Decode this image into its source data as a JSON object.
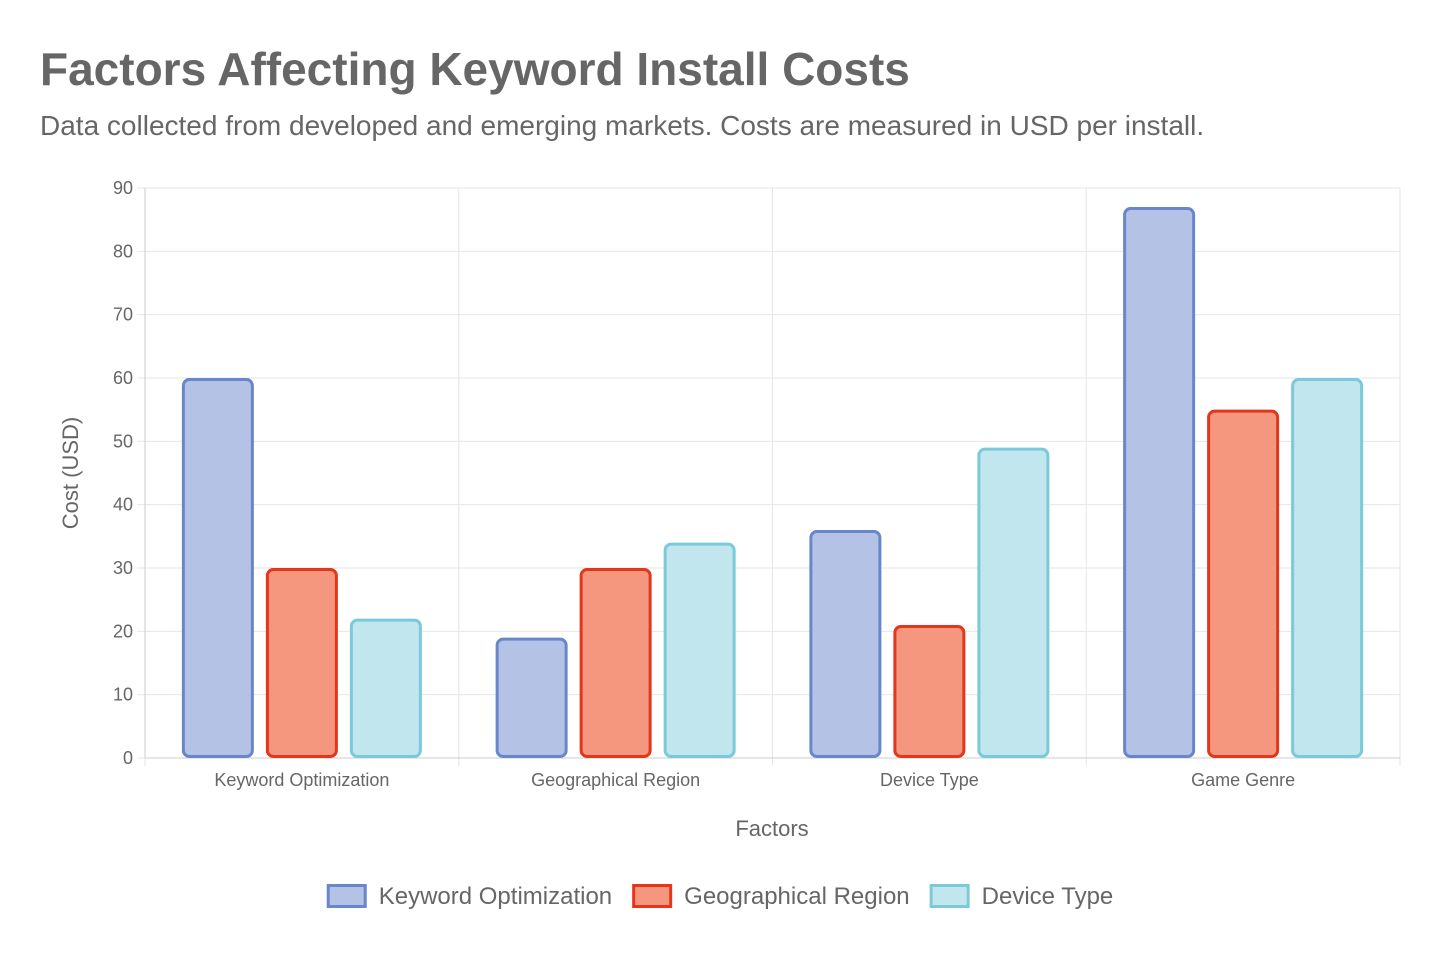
{
  "title": "Factors Affecting Keyword Install Costs",
  "subtitle": "Data collected from developed and emerging markets. Costs are measured in USD per install.",
  "chart_data": {
    "type": "bar",
    "categories": [
      "Keyword Optimization",
      "Geographical Region",
      "Device Type",
      "Game Genre"
    ],
    "series": [
      {
        "name": "Keyword Optimization",
        "values": [
          60,
          19,
          36,
          87
        ],
        "fill": "#b3c2e5",
        "stroke": "#6a86cb"
      },
      {
        "name": "Geographical Region",
        "values": [
          30,
          30,
          21,
          55
        ],
        "fill": "#f5977f",
        "stroke": "#e3361b"
      },
      {
        "name": "Device Type",
        "values": [
          22,
          34,
          49,
          60
        ],
        "fill": "#c2e6ee",
        "stroke": "#7bcad9"
      }
    ],
    "xlabel": "Factors",
    "ylabel": "Cost (USD)",
    "ylim": [
      0,
      90
    ],
    "yticks": [
      0,
      10,
      20,
      30,
      40,
      50,
      60,
      70,
      80,
      90
    ],
    "grid": true,
    "legend_position": "bottom"
  }
}
